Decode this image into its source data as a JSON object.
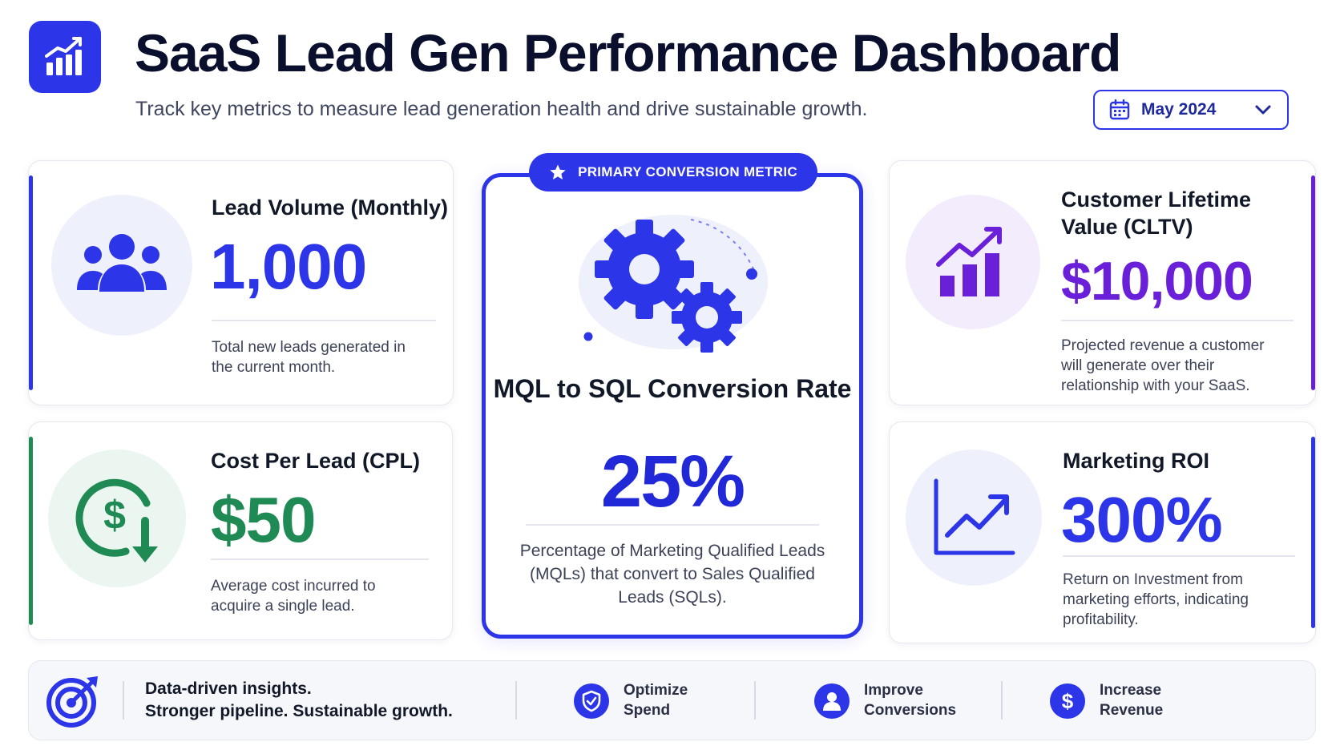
{
  "header": {
    "title": "SaaS Lead Gen Performance Dashboard",
    "subtitle": "Track key metrics to measure lead generation health and drive sustainable growth.",
    "logo_icon": "bar-chart-growth-icon"
  },
  "date_filter": {
    "icon": "calendar-icon",
    "value": "May 2024",
    "chevron_icon": "chevron-down-icon"
  },
  "cards": {
    "lead_volume": {
      "title": "Lead Volume (Monthly)",
      "value": "1,000",
      "description": "Total new leads generated in the current month.",
      "icon": "users-group-icon",
      "color": "#2c35e8"
    },
    "cpl": {
      "title": "Cost Per Lead (CPL)",
      "value": "$50",
      "description": "Average cost incurred to acquire a single lead.",
      "icon": "dollar-down-arrow-icon",
      "color": "#1f8a53"
    },
    "mql_sql": {
      "badge": "PRIMARY CONVERSION METRIC",
      "title": "MQL to SQL Conversion Rate",
      "value": "25%",
      "description": "Percentage of Marketing Qualified Leads (MQLs) that convert to Sales Qualified Leads (SQLs).",
      "icon": "gears-icon",
      "color": "#2c35e8"
    },
    "cltv": {
      "title": "Customer Lifetime Value (CLTV)",
      "value": "$10,000",
      "description": "Projected revenue a customer will generate over their relationship with your SaaS.",
      "icon": "bar-chart-trend-icon",
      "color": "#6a1fd8"
    },
    "roi": {
      "title": "Marketing ROI",
      "value": "300%",
      "description": "Return on Investment from marketing efforts, indicating profitability.",
      "icon": "line-chart-up-icon",
      "color": "#2c35e8"
    }
  },
  "footer": {
    "icon": "target-icon",
    "tagline_line1": "Data-driven insights.",
    "tagline_line2": "Stronger pipeline. Sustainable growth.",
    "items": [
      {
        "line1": "Optimize",
        "line2": "Spend",
        "icon": "shield-check-icon"
      },
      {
        "line1": "Improve",
        "line2": "Conversions",
        "icon": "user-icon"
      },
      {
        "line1": "Increase",
        "line2": "Revenue",
        "icon": "dollar-icon"
      }
    ]
  }
}
